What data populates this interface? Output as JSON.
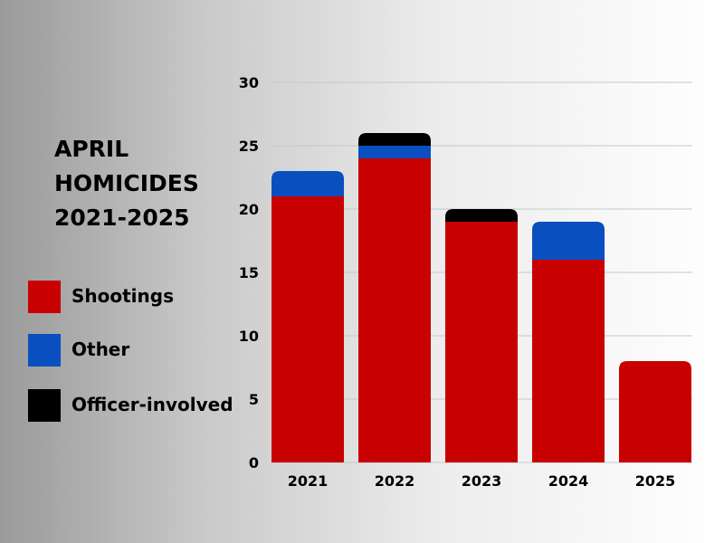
{
  "chart_data": {
    "type": "bar",
    "stacked": true,
    "title_lines": [
      "APRIL",
      "HOMICIDES",
      "2021-2025"
    ],
    "categories": [
      "2021",
      "2022",
      "2023",
      "2024",
      "2025"
    ],
    "series": [
      {
        "name": "Shootings",
        "color": "#c80000",
        "values": [
          21,
          24,
          19,
          16,
          8
        ]
      },
      {
        "name": "Other",
        "color": "#0a4fbf",
        "values": [
          2,
          1,
          0,
          3,
          0
        ]
      },
      {
        "name": "Officer-involved",
        "color": "#000000",
        "values": [
          0,
          1,
          1,
          0,
          0
        ]
      }
    ],
    "yticks": [
      0,
      5,
      10,
      15,
      20,
      25,
      30
    ],
    "ylim": [
      0,
      30
    ],
    "grid": true,
    "legend_position": "left"
  }
}
